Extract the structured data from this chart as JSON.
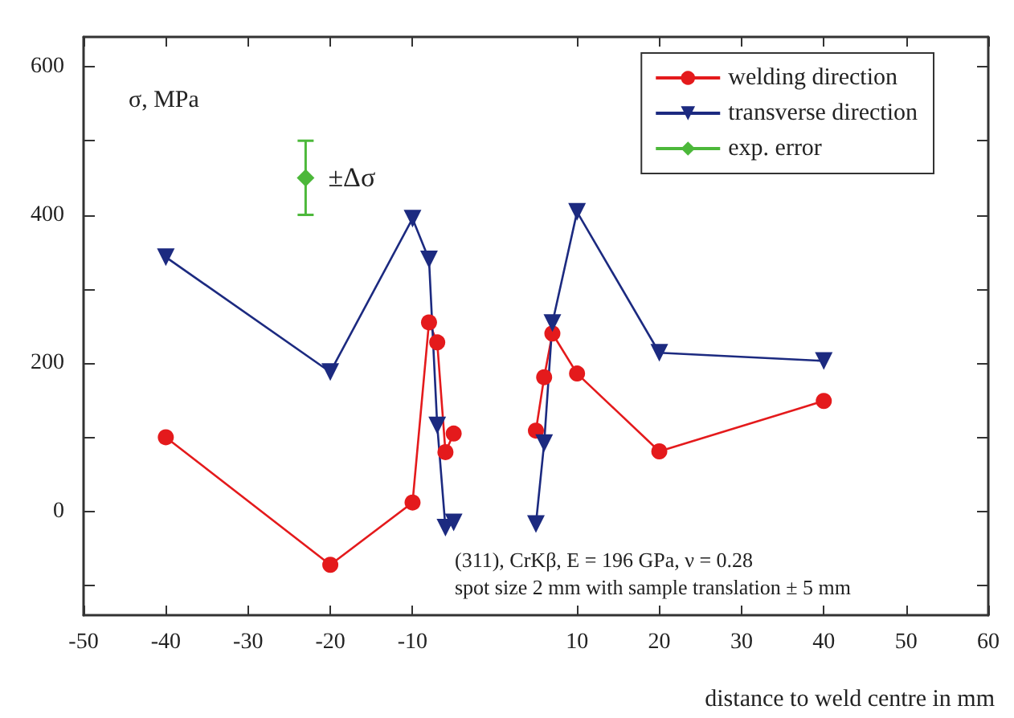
{
  "chart_data": {
    "type": "line",
    "ylabel": "σ, MPa",
    "xlabel": "distance to weld centre in mm",
    "xlim": [
      -50,
      60
    ],
    "xticks": [
      -50,
      -40,
      -30,
      -20,
      -10,
      10,
      20,
      30,
      40,
      50,
      60
    ],
    "ylim": [
      -140,
      640
    ],
    "yticks": [
      {
        "value": -100,
        "label": null
      },
      0,
      {
        "value": 100,
        "label": null
      },
      200,
      {
        "value": 300,
        "label": null
      },
      400,
      {
        "value": 500,
        "label": null
      },
      600
    ],
    "legend": "top right",
    "grid": false,
    "line_style": "solid",
    "annotations": [
      {
        "text": "±Δσ",
        "x": -23,
        "y": 450
      },
      "(311), CrKβ, E = 196 GPa, ν = 0.28",
      "spot size 2 mm with sample translation ± 5 mm"
    ],
    "series": [
      {
        "name": "welding direction",
        "color": "#e41a1c",
        "marker": "circle",
        "x": [
          -40,
          -20,
          -10,
          -8,
          -7,
          -6,
          -5,
          5,
          6,
          7,
          10,
          20,
          40
        ],
        "values": [
          100,
          -72,
          12,
          255,
          228,
          80,
          105,
          109,
          181,
          240,
          186,
          81,
          149
        ]
      },
      {
        "name": "transverse direction",
        "color": "#1c2a80",
        "marker": "triangle",
        "x": [
          -40,
          -20,
          -10,
          -8,
          -7,
          -6,
          -5,
          5,
          6,
          7,
          10,
          20,
          40
        ],
        "values": [
          343,
          188,
          395,
          340,
          116,
          -22,
          -15,
          -17,
          92,
          254,
          404,
          214,
          203
        ]
      },
      {
        "name": "exp. error",
        "color": "#4cb83a",
        "marker": "diamond",
        "x": [
          -23
        ],
        "values": [
          450
        ],
        "errors": [
          50
        ]
      }
    ]
  }
}
